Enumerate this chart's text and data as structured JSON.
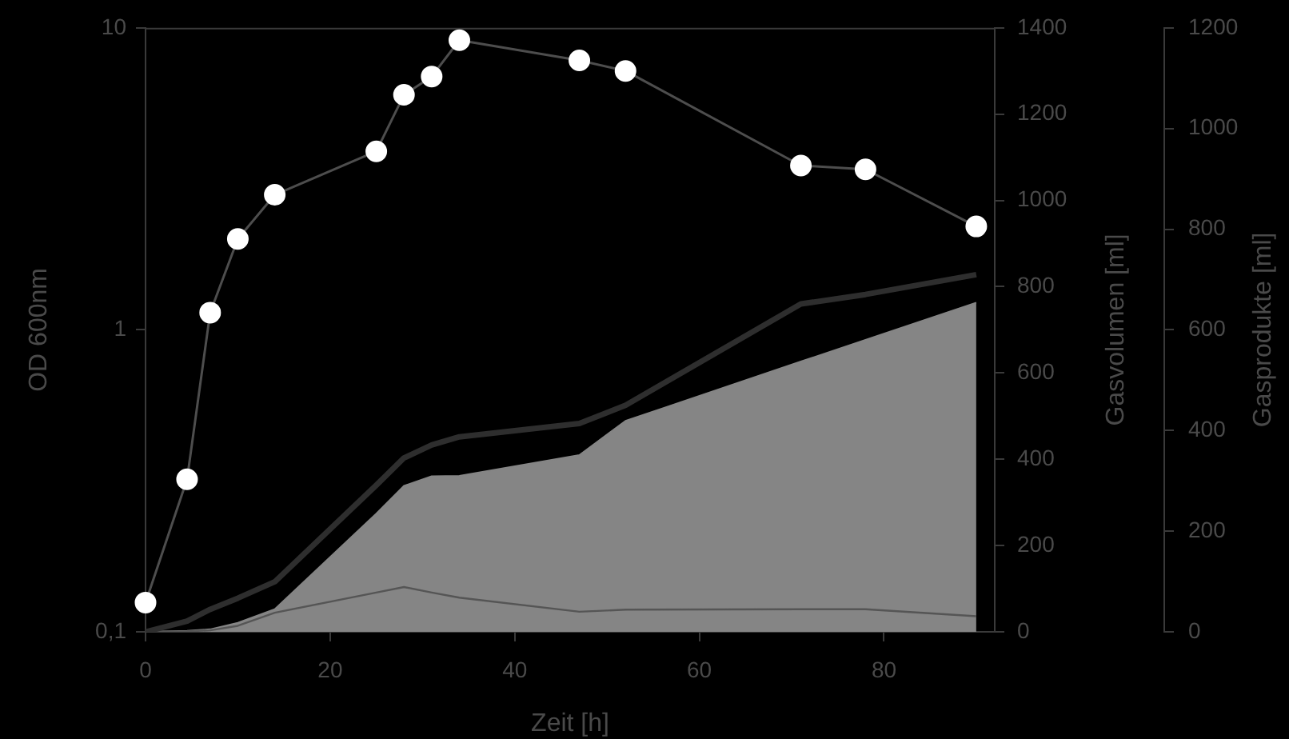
{
  "chart_data": {
    "type": "line",
    "xlabel": "Zeit [h]",
    "ylabel": "OD 600nm",
    "y2label": "Gasvolumen [ml]",
    "y3label": "Gasprodukte [ml]",
    "x": [
      0,
      4.5,
      7,
      10,
      14,
      25,
      28,
      31,
      34,
      47,
      52,
      71,
      78,
      90
    ],
    "series": [
      {
        "type": "area",
        "axis": "y3",
        "color": "#858585",
        "values": [
          0,
          2,
          5,
          18,
          45,
          235,
          290,
          309,
          310,
          351,
          419,
          537,
          580,
          654
        ]
      },
      {
        "type": "line",
        "axis": "y3",
        "color": "#555555",
        "values": [
          0,
          1,
          3,
          12,
          38,
          78,
          89,
          78,
          68,
          40,
          44,
          45,
          45,
          31
        ]
      },
      {
        "type": "line",
        "axis": "y2",
        "color": "#2e2e2e",
        "values": [
          0,
          25,
          52,
          78,
          116,
          340,
          403,
          433,
          452,
          483,
          525,
          760,
          782,
          828
        ]
      },
      {
        "type": "line",
        "axis": "y",
        "color": "#ffffff",
        "marker": "circle",
        "values": [
          0.125,
          0.32,
          1.14,
          2.0,
          2.8,
          3.9,
          6.0,
          6.9,
          9.1,
          7.8,
          7.2,
          3.5,
          3.4,
          2.2
        ]
      }
    ],
    "xlim": [
      0,
      92
    ],
    "xticks": [
      0,
      20,
      40,
      60,
      80
    ],
    "ylim": [
      0.1,
      10
    ],
    "yticks": [
      {
        "value": 0.1,
        "label": "0,1"
      },
      1,
      10
    ],
    "y2lim": [
      0,
      1400
    ],
    "y2ticks": [
      0,
      200,
      400,
      600,
      800,
      1000,
      1200,
      1400
    ],
    "y3lim": [
      0,
      1200
    ],
    "y3ticks": [
      0,
      200,
      400,
      600,
      800,
      1000,
      1200
    ],
    "log": "y",
    "grid": false,
    "legend": false
  }
}
